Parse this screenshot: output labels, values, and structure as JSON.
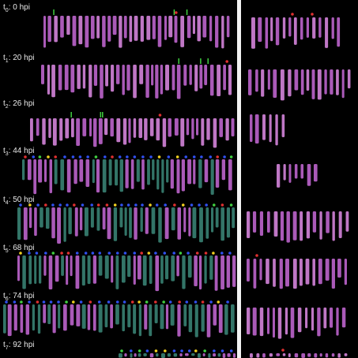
{
  "rows": [
    {
      "var": "t",
      "sub": "0",
      "time": ": 0 hpi"
    },
    {
      "var": "t",
      "sub": "1",
      "time": ": 20 hpi"
    },
    {
      "var": "t",
      "sub": "2",
      "time": ": 26 hpi"
    },
    {
      "var": "t",
      "sub": "3",
      "time": ": 44 hpi"
    },
    {
      "var": "t",
      "sub": "4",
      "time": ": 50 hpi"
    },
    {
      "var": "t",
      "sub": "5",
      "time": ": 68 hpi"
    },
    {
      "var": "t",
      "sub": "6",
      "time": ": 74 hpi"
    },
    {
      "var": "t",
      "sub": "7",
      "time": ": 92 hpi"
    }
  ],
  "colors": {
    "background": "#000000",
    "cell_magenta": "#c86ad8",
    "cell_pink": "#e08ce8",
    "cell_teal": "#3c8a7a",
    "marker_red": "#e03030",
    "marker_green": "#40d040",
    "marker_blue": "#3050f0",
    "marker_yellow": "#f0d020",
    "divider": "#f2f2f2"
  }
}
